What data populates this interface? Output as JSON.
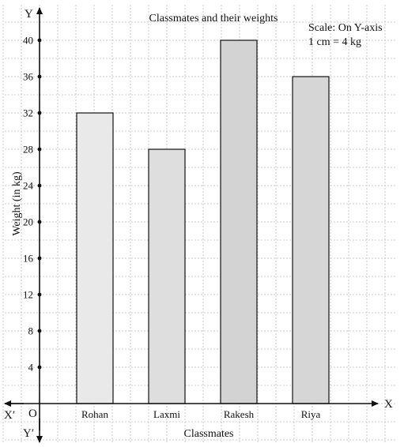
{
  "chart_data": {
    "type": "bar",
    "title": "Classmates and their weights",
    "scale_note": [
      "Scale: On Y-axis",
      "1 cm = 4 kg"
    ],
    "xlabel": "Classmates",
    "ylabel": "Weight (in kg)",
    "categories": [
      "Rohan",
      "Laxmi",
      "Rakesh",
      "Riya"
    ],
    "values": [
      32,
      28,
      40,
      36
    ],
    "ylim": [
      0,
      44
    ],
    "yticks": [
      4,
      8,
      12,
      16,
      20,
      24,
      28,
      32,
      36,
      40
    ],
    "grid": true,
    "bar_colors": [
      "#e9e9e9",
      "#dedede",
      "#d3d3d3",
      "#d6d6d6"
    ],
    "axis_letters": {
      "x": "X",
      "x_neg": "X′",
      "y": "Y",
      "y_neg": "Y′",
      "origin": "O"
    }
  }
}
